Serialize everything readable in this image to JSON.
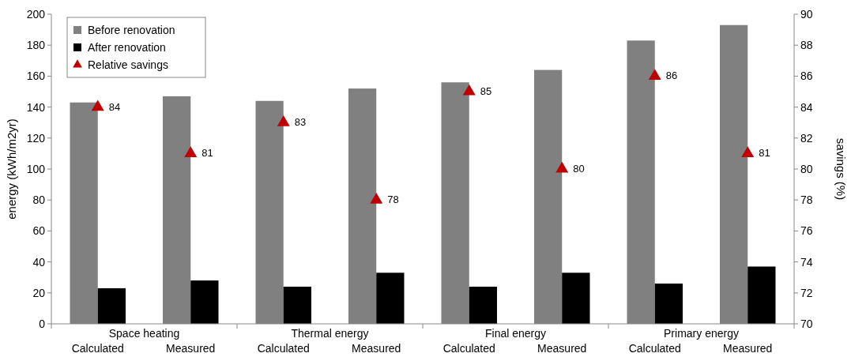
{
  "chart_data": {
    "type": "bar",
    "ylabel": "energy (kWh/m2yr)",
    "y2label": "savings (%)",
    "categories": [
      "Calculated",
      "Measured",
      "Calculated",
      "Measured",
      "Calculated",
      "Measured",
      "Calculated",
      "Measured"
    ],
    "annotations": [
      "Space heating",
      "Thermal energy",
      "Final energy",
      "Primary energy"
    ],
    "series": [
      {
        "name": "Before renovation",
        "color": "#808080",
        "values": [
          143,
          147,
          144,
          152,
          156,
          164,
          183,
          193
        ]
      },
      {
        "name": "After renovation",
        "color": "#000000",
        "values": [
          23,
          28,
          24,
          33,
          24,
          33,
          26,
          37
        ]
      },
      {
        "name": "Relative savings",
        "type": "scatter",
        "axis": "y2",
        "marker": "triangle",
        "color": "#c00000",
        "values": [
          84,
          81,
          83,
          78,
          85,
          80,
          86,
          81
        ],
        "value_labels": [
          "84",
          "81",
          "83",
          "78",
          "85",
          "80",
          "86",
          "81"
        ]
      }
    ],
    "ylim": [
      0,
      200
    ],
    "yticks": [
      0,
      20,
      40,
      60,
      80,
      100,
      120,
      140,
      160,
      180,
      200
    ],
    "y2lim": [
      70,
      90
    ],
    "y2ticks": [
      70,
      72,
      74,
      76,
      78,
      80,
      82,
      84,
      86,
      88,
      90
    ],
    "legend": "top left"
  }
}
